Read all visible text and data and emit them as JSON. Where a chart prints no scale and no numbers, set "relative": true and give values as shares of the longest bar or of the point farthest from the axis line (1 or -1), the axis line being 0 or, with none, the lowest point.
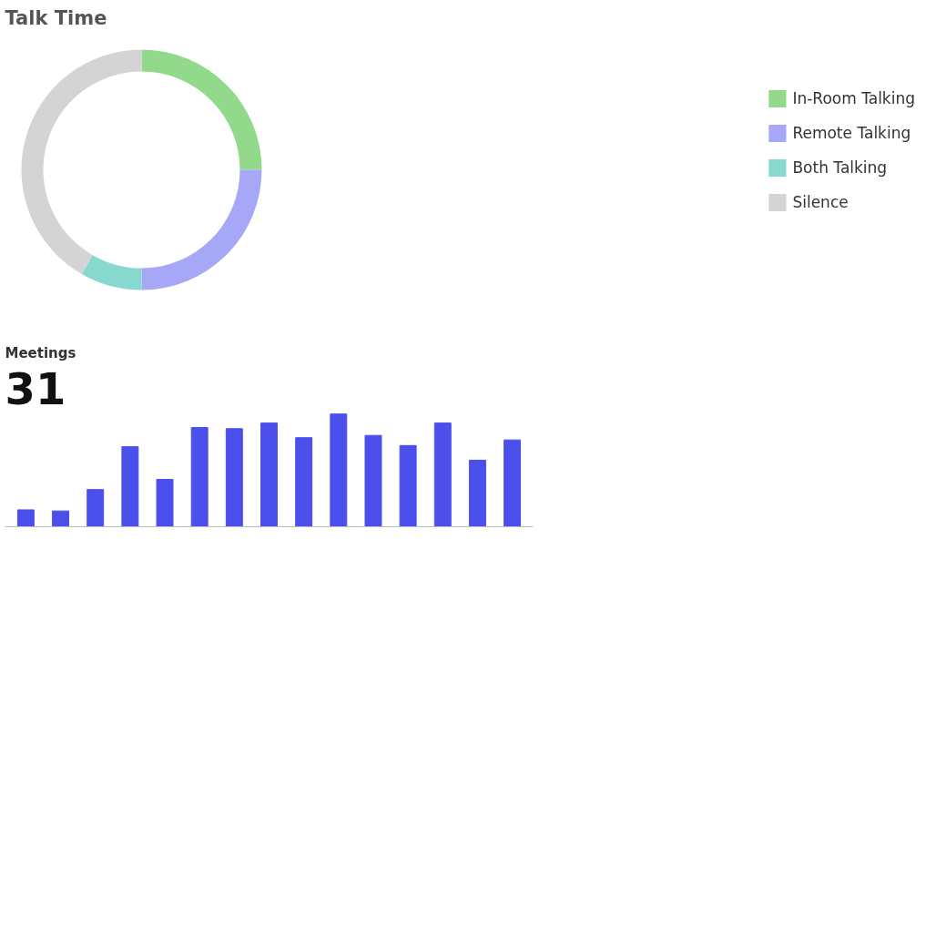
{
  "chart_data": [
    {
      "type": "donut",
      "title": "Talk Time",
      "categories": [
        "In-Room Talking",
        "Remote Talking",
        "Both Talking",
        "Silence"
      ],
      "values": [
        25,
        25,
        8.3,
        41.7
      ],
      "colors": [
        "#92d98c",
        "#a6a8f7",
        "#87d9d0",
        "#d4d4d4"
      ],
      "legend": "right"
    },
    {
      "type": "bar",
      "title": "Meetings",
      "annotations": [
        "31"
      ],
      "relative": true,
      "categories": [
        null,
        null,
        null,
        null,
        null,
        null,
        null,
        null,
        null,
        null,
        null,
        null,
        null,
        null,
        null
      ],
      "values": [
        0.15,
        0.14,
        0.33,
        0.71,
        0.42,
        0.88,
        0.87,
        0.92,
        0.79,
        1,
        0.81,
        0.72,
        0.92,
        0.59,
        0.77
      ],
      "color": "#4b4fec"
    }
  ]
}
